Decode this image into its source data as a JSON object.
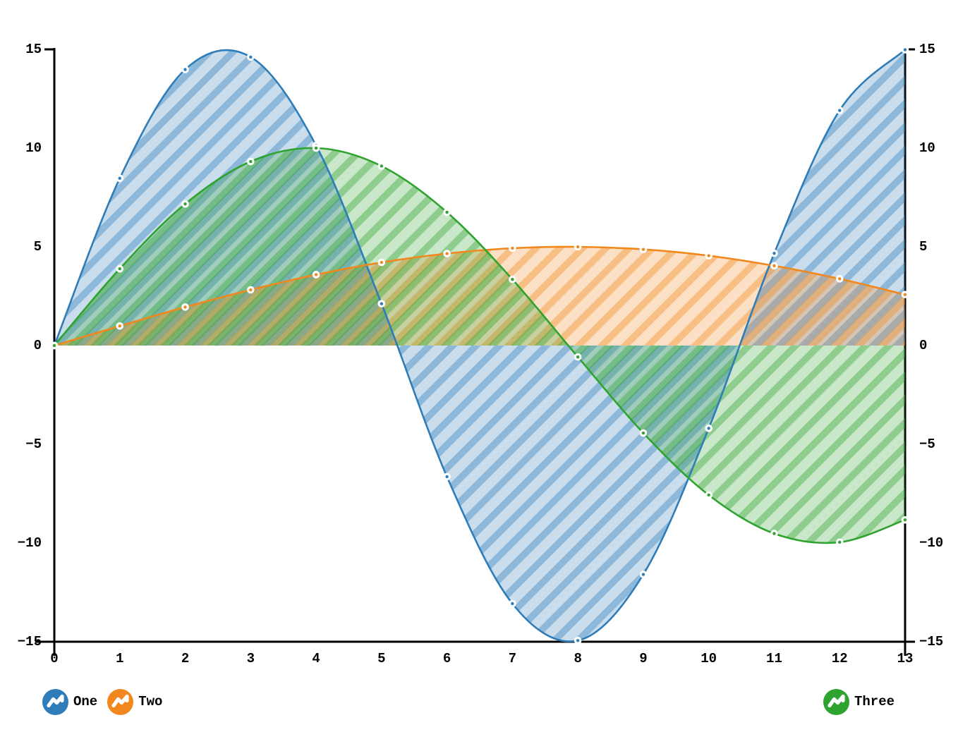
{
  "chart_data": {
    "type": "area",
    "title": "",
    "xlabel": "",
    "ylabel": "",
    "x": [
      0,
      1,
      2,
      3,
      4,
      5,
      6,
      7,
      8,
      9,
      10,
      11,
      12,
      13
    ],
    "series": [
      {
        "name": "One",
        "color": "#2e7cb8",
        "values": [
          0,
          8.47,
          13.98,
          14.61,
          10.13,
          2.12,
          -6.64,
          -13.07,
          -14.94,
          -11.59,
          -4.19,
          4.67,
          11.91,
          14.98
        ]
      },
      {
        "name": "Two",
        "color": "#f2881d",
        "values": [
          0,
          0.99,
          1.95,
          2.82,
          3.59,
          4.21,
          4.66,
          4.93,
          5.0,
          4.87,
          4.55,
          4.04,
          3.38,
          2.58
        ]
      },
      {
        "name": "Three",
        "color": "#2fa32f",
        "values": [
          0,
          3.89,
          7.17,
          9.32,
          10.0,
          9.09,
          6.75,
          3.35,
          -0.58,
          -4.43,
          -7.57,
          -9.52,
          -9.96,
          -8.83
        ]
      }
    ],
    "xlim": [
      0,
      13
    ],
    "ylim": [
      -15,
      15
    ],
    "x_tick_labels": [
      "0",
      "1",
      "2",
      "3",
      "4",
      "5",
      "6",
      "7",
      "8",
      "9",
      "10",
      "11",
      "12",
      "13"
    ],
    "y_ticks": [
      15,
      10,
      5,
      0,
      -5,
      -10,
      -15
    ],
    "y_tick_labels": [
      "15",
      "10",
      "5",
      "0",
      "−5",
      "−10",
      "−15"
    ],
    "y_axis_sides": [
      "left",
      "right"
    ],
    "grid": false,
    "background": "#ffffff",
    "axis_color": "#000000",
    "style": {
      "curve": "spline",
      "fill": "diagonal-hatch-to-zero",
      "marker": "white-circle-with-color-dot"
    },
    "legend": {
      "position": "bottom",
      "items": [
        "One",
        "Two",
        "Three"
      ]
    }
  }
}
